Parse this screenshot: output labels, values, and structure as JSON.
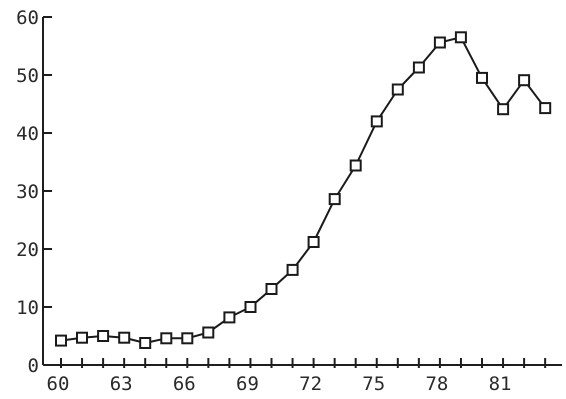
{
  "chart_data": {
    "type": "line",
    "title": "",
    "xlabel": "",
    "ylabel": "",
    "xlim": [
      60,
      83
    ],
    "ylim": [
      0,
      60
    ],
    "grid": false,
    "x_ticks": [
      60,
      61,
      62,
      63,
      64,
      65,
      66,
      67,
      68,
      69,
      70,
      71,
      72,
      73,
      74,
      75,
      76,
      77,
      78,
      79,
      80,
      81,
      82,
      83
    ],
    "y_ticks": [
      0,
      10,
      20,
      30,
      40,
      50,
      60
    ],
    "x_tick_labels": [
      {
        "x": 60,
        "label": "60"
      },
      {
        "x": 63,
        "label": "63"
      },
      {
        "x": 66,
        "label": "66"
      },
      {
        "x": 69,
        "label": "69"
      },
      {
        "x": 72,
        "label": "72"
      },
      {
        "x": 75,
        "label": "75"
      },
      {
        "x": 78,
        "label": "78"
      },
      {
        "x": 81,
        "label": "81"
      }
    ],
    "y_tick_labels": [
      {
        "y": 0,
        "label": "0"
      },
      {
        "y": 10,
        "label": "10"
      },
      {
        "y": 20,
        "label": "20"
      },
      {
        "y": 30,
        "label": "30"
      },
      {
        "y": 40,
        "label": "40"
      },
      {
        "y": 50,
        "label": "50"
      },
      {
        "y": 60,
        "label": "60"
      }
    ],
    "series": [
      {
        "marker": "square",
        "color": "#1a1a1a",
        "x": [
          60,
          61,
          62,
          63,
          64,
          65,
          66,
          67,
          68,
          69,
          70,
          71,
          72,
          73,
          74,
          75,
          76,
          77,
          78,
          79,
          80,
          81,
          82,
          83
        ],
        "y": [
          4.2,
          4.7,
          5.0,
          4.7,
          3.8,
          4.6,
          4.6,
          5.6,
          8.2,
          10.0,
          13.1,
          16.4,
          21.2,
          28.6,
          34.4,
          42.0,
          47.5,
          51.3,
          55.6,
          56.5,
          49.5,
          44.1,
          49.1,
          44.3
        ]
      }
    ]
  }
}
